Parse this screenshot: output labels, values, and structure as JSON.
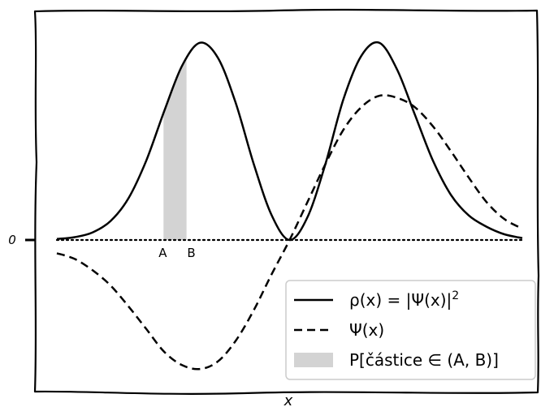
{
  "chart_data": {
    "type": "line",
    "title": "",
    "xlabel": "x",
    "ylabel": "",
    "xlim": [
      -3.25,
      3.25
    ],
    "ylim": [
      -0.72,
      1.12
    ],
    "yticks": [
      {
        "value": 0,
        "label": "0"
      }
    ],
    "grid": false,
    "legend_position": "bottom-right",
    "interval_markers": [
      {
        "label": "A",
        "x": -1.76
      },
      {
        "label": "B",
        "x": -1.44
      }
    ],
    "series": [
      {
        "name": "ρ(x) = |Ψ(x)|²",
        "style": "solid",
        "x": [
          -3.25,
          -3.0,
          -2.75,
          -2.5,
          -2.25,
          -2.0,
          -1.75,
          -1.5,
          -1.25,
          -1.0,
          -0.75,
          -0.5,
          -0.25,
          0.0,
          0.25,
          0.5,
          0.75,
          1.0,
          1.25,
          1.5,
          1.75,
          2.0,
          2.25,
          2.5,
          2.75,
          3.0,
          3.25
        ],
        "y": [
          0.005,
          0.015,
          0.04,
          0.1,
          0.22,
          0.42,
          0.68,
          0.92,
          1.04,
          0.96,
          0.72,
          0.4,
          0.13,
          0.0,
          0.12,
          0.4,
          0.74,
          0.97,
          1.04,
          0.9,
          0.66,
          0.42,
          0.24,
          0.13,
          0.07,
          0.03,
          0.01
        ]
      },
      {
        "name": "Ψ(x)",
        "style": "dashed",
        "x": [
          -3.25,
          -3.0,
          -2.75,
          -2.5,
          -2.25,
          -2.0,
          -1.75,
          -1.5,
          -1.25,
          -1.0,
          -0.75,
          -0.5,
          -0.25,
          0.0,
          0.25,
          0.5,
          0.75,
          1.0,
          1.25,
          1.5,
          1.75,
          2.0,
          2.25,
          2.5,
          2.75,
          3.0,
          3.25
        ],
        "y": [
          -0.07,
          -0.1,
          -0.16,
          -0.24,
          -0.35,
          -0.47,
          -0.59,
          -0.66,
          -0.68,
          -0.64,
          -0.53,
          -0.37,
          -0.18,
          0.0,
          0.2,
          0.4,
          0.58,
          0.7,
          0.76,
          0.75,
          0.7,
          0.6,
          0.47,
          0.33,
          0.2,
          0.11,
          0.06
        ]
      }
    ],
    "shaded_region": {
      "name": "P[částice ∈ (A, B)]",
      "x_from": -1.76,
      "x_to": -1.44,
      "color": "#d3d3d3"
    }
  },
  "legend": {
    "items": [
      {
        "label": "ρ(x) = |Ψ(x)|",
        "sup": "2",
        "style": "solid"
      },
      {
        "label": "Ψ(x)",
        "sup": "",
        "style": "dashed"
      },
      {
        "label": "P[částice ∈ (A, B)]",
        "sup": "",
        "style": "patch"
      }
    ]
  },
  "colors": {
    "line": "#000000",
    "shade": "#d3d3d3",
    "legend_bg": "#ffffff",
    "legend_border": "#cccccc"
  }
}
